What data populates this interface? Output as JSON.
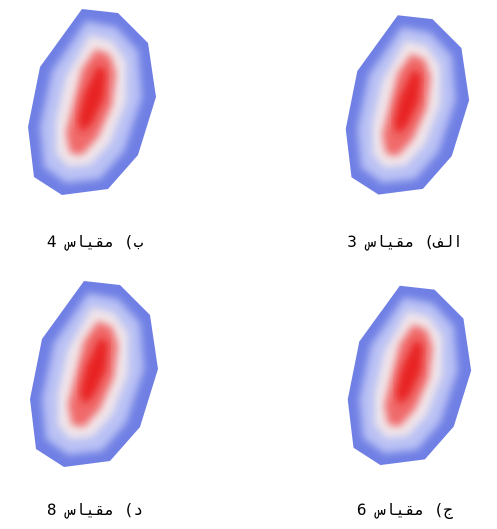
{
  "panels": [
    {
      "caption": "الف) مقیاس 3"
    },
    {
      "caption": "ب) مقیاس 4"
    },
    {
      "caption": "ج) مقیاس 6"
    },
    {
      "caption": "د) مقیاس 8"
    }
  ]
}
